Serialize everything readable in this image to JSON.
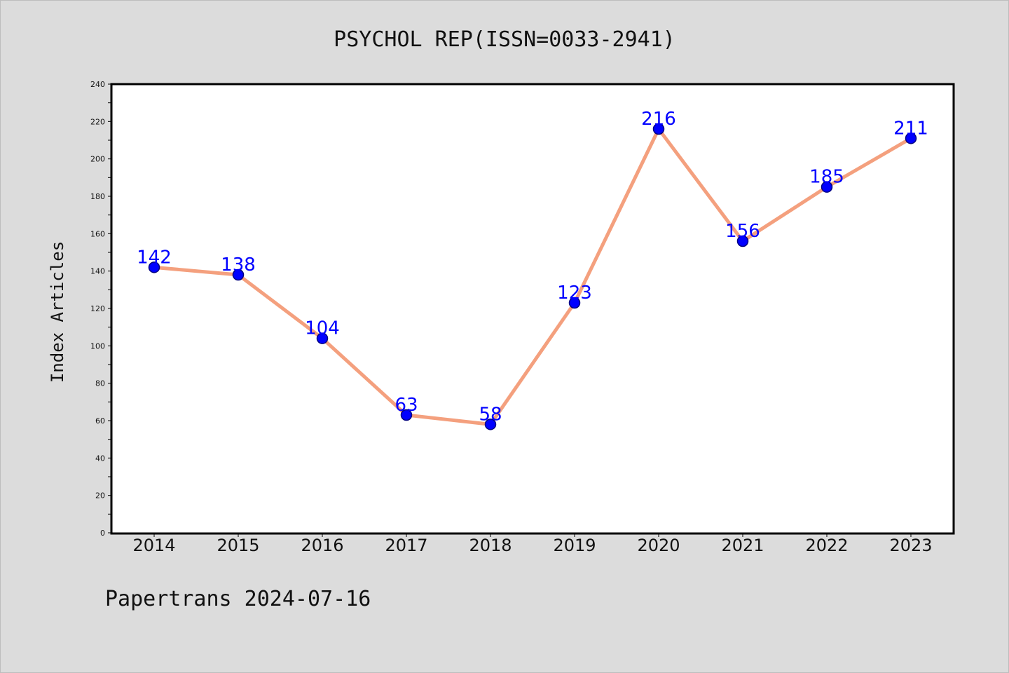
{
  "chart_data": {
    "type": "line",
    "title": "PSYCHOL REP(ISSN=0033-2941)",
    "xlabel": "",
    "ylabel": "Index Articles",
    "categories": [
      "2014",
      "2015",
      "2016",
      "2017",
      "2018",
      "2019",
      "2020",
      "2021",
      "2022",
      "2023"
    ],
    "series": [
      {
        "values": [
          142,
          138,
          104,
          63,
          58,
          123,
          216,
          156,
          185,
          211
        ]
      }
    ],
    "ylim": [
      0,
      240
    ],
    "yticks": [
      0,
      20,
      40,
      60,
      80,
      100,
      120,
      140,
      160,
      180,
      200,
      220,
      240
    ],
    "grid": false,
    "data_labels": true,
    "colors": {
      "line": "#f4a07e",
      "marker": "#0000ff",
      "marker_edge": "#000080",
      "data_label": "#0000ff",
      "background": "#dcdcdc",
      "plot_area": "#ffffff"
    }
  },
  "footer": {
    "watermark": "Papertrans 2024-07-16"
  }
}
